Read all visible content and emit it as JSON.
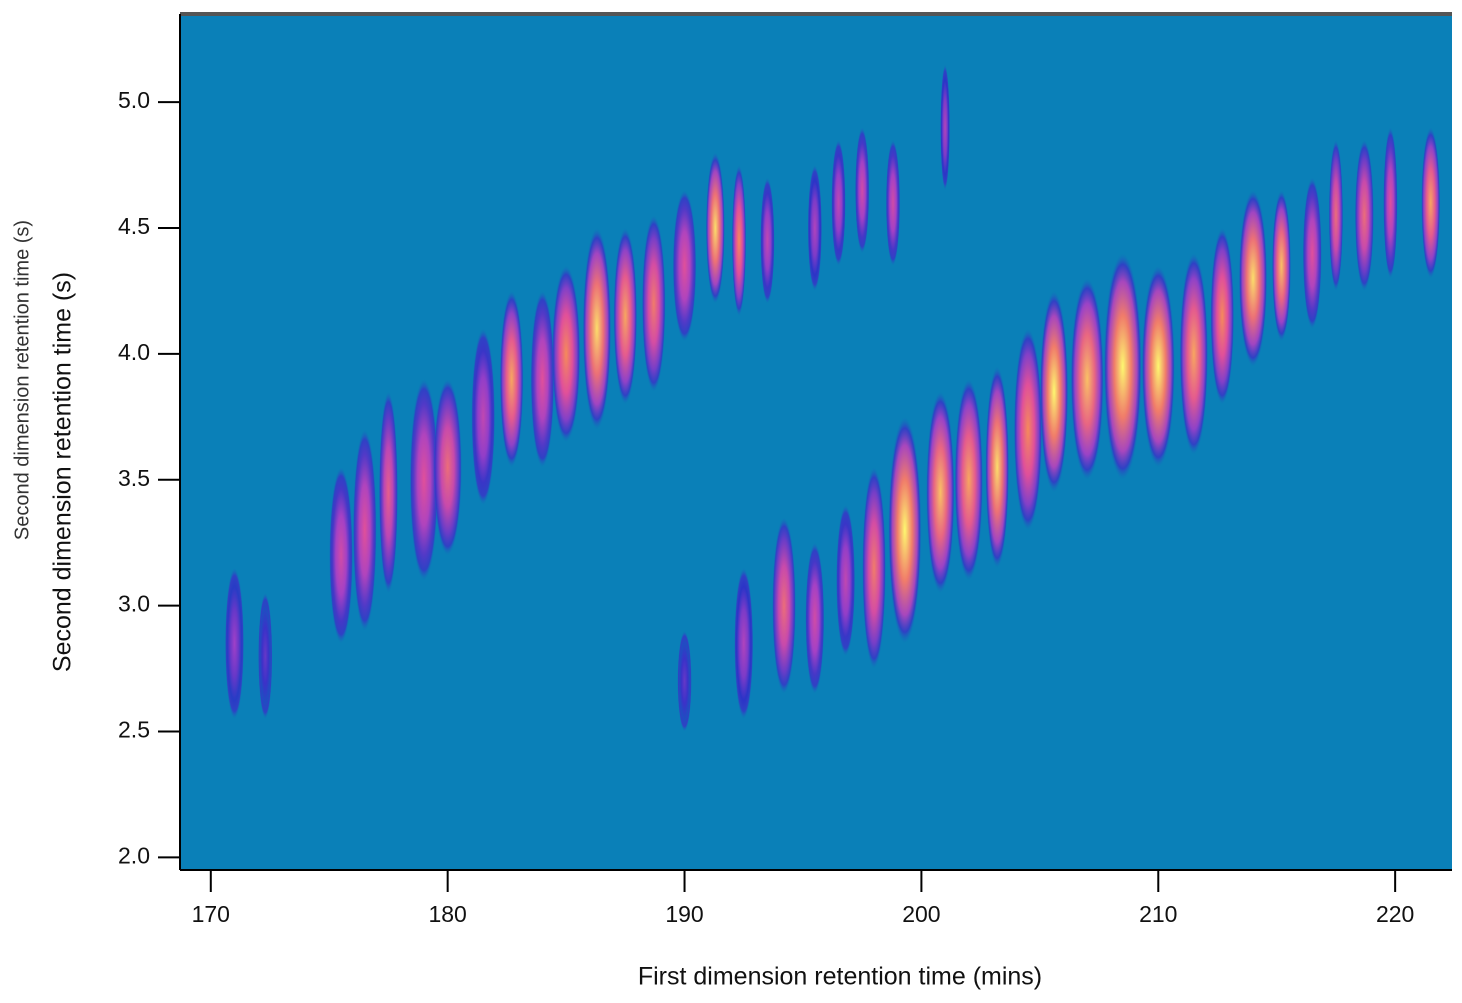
{
  "chart_data": {
    "type": "heatmap",
    "x_label": "First dimension retention time (mins)",
    "y_labels": [
      "Second dimension retention time (s)",
      "Second dimension retention time (s)"
    ],
    "xlim": [
      168.7,
      222.4
    ],
    "ylim": [
      1.95,
      5.35
    ],
    "xticks": [
      170,
      180,
      190,
      200,
      210,
      220
    ],
    "yticks": [
      {
        "value": 2,
        "label": "2.0"
      },
      {
        "value": 2.5,
        "label": "2.5"
      },
      {
        "value": 3,
        "label": "3.0"
      },
      {
        "value": 3.5,
        "label": "3.5"
      },
      {
        "value": 4,
        "label": "4.0"
      },
      {
        "value": 4.5,
        "label": "4.5"
      },
      {
        "value": 5,
        "label": "5.0"
      }
    ],
    "background": "#0a80b8",
    "colormap": [
      "#0a80b8",
      "#2c30c8",
      "#a040c8",
      "#e0509a",
      "#f58a5a",
      "#fdf870"
    ],
    "peaks": {
      "x": [
        171,
        172.3,
        175.5,
        176.5,
        177.5,
        179,
        180,
        181.5,
        182.7,
        184,
        185,
        186.3,
        187.5,
        188.7,
        190,
        191.3,
        192.3,
        193.5,
        195.5,
        196.5,
        197.5,
        198.8,
        201,
        190,
        192.5,
        194.2,
        195.5,
        196.8,
        198,
        199.3,
        200.8,
        202,
        203.2,
        204.5,
        205.6,
        207,
        208.5,
        210,
        211.5,
        212.7,
        214,
        215.2,
        216.5,
        217.5,
        218.7,
        219.8,
        221.5
      ],
      "y": [
        2.85,
        2.8,
        3.2,
        3.3,
        3.45,
        3.5,
        3.55,
        3.75,
        3.9,
        3.9,
        4.0,
        4.1,
        4.15,
        4.2,
        4.35,
        4.5,
        4.45,
        4.45,
        4.5,
        4.6,
        4.65,
        4.6,
        4.9,
        2.7,
        2.85,
        3.0,
        2.95,
        3.1,
        3.15,
        3.3,
        3.45,
        3.5,
        3.55,
        3.7,
        3.85,
        3.9,
        3.95,
        3.95,
        4.0,
        4.15,
        4.3,
        4.35,
        4.4,
        4.55,
        4.55,
        4.6,
        4.6
      ],
      "x_width": [
        0.4,
        0.3,
        0.5,
        0.5,
        0.4,
        0.6,
        0.6,
        0.5,
        0.5,
        0.5,
        0.6,
        0.6,
        0.5,
        0.5,
        0.5,
        0.4,
        0.3,
        0.3,
        0.3,
        0.3,
        0.3,
        0.3,
        0.2,
        0.3,
        0.4,
        0.5,
        0.4,
        0.4,
        0.5,
        0.7,
        0.6,
        0.6,
        0.5,
        0.6,
        0.6,
        0.7,
        0.8,
        0.7,
        0.6,
        0.5,
        0.6,
        0.4,
        0.4,
        0.3,
        0.4,
        0.3,
        0.4
      ],
      "y_width": [
        0.3,
        0.25,
        0.35,
        0.4,
        0.4,
        0.4,
        0.35,
        0.35,
        0.35,
        0.35,
        0.35,
        0.4,
        0.35,
        0.35,
        0.3,
        0.3,
        0.3,
        0.25,
        0.25,
        0.25,
        0.25,
        0.25,
        0.25,
        0.2,
        0.3,
        0.35,
        0.3,
        0.3,
        0.4,
        0.45,
        0.4,
        0.4,
        0.4,
        0.4,
        0.4,
        0.4,
        0.45,
        0.4,
        0.4,
        0.35,
        0.35,
        0.3,
        0.3,
        0.3,
        0.3,
        0.3,
        0.3
      ],
      "intensity": [
        0.4,
        0.3,
        0.55,
        0.6,
        0.65,
        0.6,
        0.7,
        0.5,
        0.85,
        0.6,
        0.8,
        0.95,
        0.85,
        0.75,
        0.6,
        0.95,
        0.8,
        0.5,
        0.45,
        0.5,
        0.55,
        0.55,
        0.45,
        0.3,
        0.45,
        0.7,
        0.55,
        0.5,
        0.75,
        1.0,
        0.9,
        0.85,
        0.95,
        0.8,
        1.0,
        0.9,
        1.0,
        1.0,
        0.85,
        0.8,
        0.95,
        0.9,
        0.6,
        0.7,
        0.7,
        0.6,
        0.85
      ]
    }
  }
}
